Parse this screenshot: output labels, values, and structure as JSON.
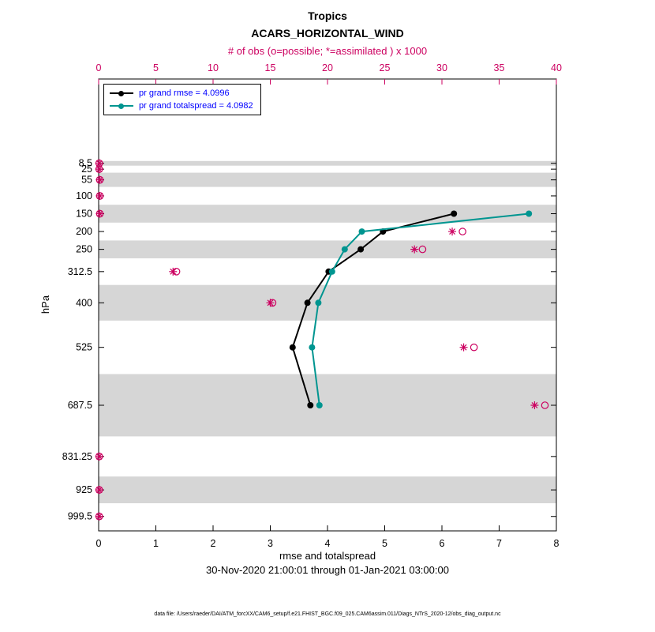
{
  "colors": {
    "rmse": "#000000",
    "totalspread": "#009590",
    "obs": "#cc0060",
    "legend_text": "#0000ff",
    "band": "#d6d6d6"
  },
  "chart_data": {
    "type": "line",
    "title": "Tropics",
    "subtitle": "ACARS_HORIZONTAL_WIND",
    "top_axis_label": "# of obs (o=possible; *=assimilated ) x 1000",
    "xlabel": "rmse and totalspread",
    "ylabel": "hPa",
    "date_range": "30-Nov-2020 21:00:01 through 01-Jan-2021 03:00:00",
    "data_file": "data file: /Users/raeder/DAI/ATM_forcXX/CAM6_setup/f.e21.FHIST_BGC.f09_025.CAM6assim.011/Diags_NTrS_2020-12/obs_diag_output.nc",
    "x_range": [
      0,
      8
    ],
    "x_ticks": [
      0,
      1,
      2,
      3,
      4,
      5,
      6,
      7,
      8
    ],
    "top_axis_range": [
      0,
      40
    ],
    "top_axis_ticks": [
      0,
      5,
      10,
      15,
      20,
      25,
      30,
      35,
      40
    ],
    "y_levels_hpa": [
      8.5,
      25,
      55,
      100,
      150,
      200,
      250,
      312.5,
      400,
      525,
      687.5,
      831.25,
      925,
      999.5
    ],
    "y_axis_range_hpa": [
      -228,
      1040
    ],
    "shaded_bands_hpa": [
      [
        2,
        15
      ],
      [
        35,
        75
      ],
      [
        125,
        175
      ],
      [
        225,
        275
      ],
      [
        350,
        450
      ],
      [
        600,
        775
      ],
      [
        887.5,
        962.5
      ]
    ],
    "series": [
      {
        "name": "pr grand rmse = 4.0996",
        "color_key": "rmse",
        "points": [
          {
            "level_hpa": 150,
            "value": 6.21
          },
          {
            "level_hpa": 200,
            "value": 4.97
          },
          {
            "level_hpa": 250,
            "value": 4.58
          },
          {
            "level_hpa": 312.5,
            "value": 4.02
          },
          {
            "level_hpa": 400,
            "value": 3.65
          },
          {
            "level_hpa": 525,
            "value": 3.39
          },
          {
            "level_hpa": 687.5,
            "value": 3.7
          }
        ]
      },
      {
        "name": "pr grand totalspread = 4.0982",
        "color_key": "totalspread",
        "points": [
          {
            "level_hpa": 150,
            "value": 7.52
          },
          {
            "level_hpa": 200,
            "value": 4.6
          },
          {
            "level_hpa": 250,
            "value": 4.3
          },
          {
            "level_hpa": 312.5,
            "value": 4.08
          },
          {
            "level_hpa": 400,
            "value": 3.84
          },
          {
            "level_hpa": 525,
            "value": 3.73
          },
          {
            "level_hpa": 687.5,
            "value": 3.86
          }
        ]
      }
    ],
    "obs_counts_thousands": [
      {
        "level_hpa": 8.5,
        "possible": 0.05,
        "assimilated": 0.05
      },
      {
        "level_hpa": 25,
        "possible": 0.05,
        "assimilated": 0.05
      },
      {
        "level_hpa": 55,
        "possible": 0.1,
        "assimilated": 0.1
      },
      {
        "level_hpa": 100,
        "possible": 0.1,
        "assimilated": 0.1
      },
      {
        "level_hpa": 150,
        "possible": 0.1,
        "assimilated": 0.1
      },
      {
        "level_hpa": 200,
        "possible": 31.8,
        "assimilated": 30.9
      },
      {
        "level_hpa": 250,
        "possible": 28.3,
        "assimilated": 27.6
      },
      {
        "level_hpa": 312.5,
        "possible": 6.8,
        "assimilated": 6.5
      },
      {
        "level_hpa": 400,
        "possible": 15.2,
        "assimilated": 15.0
      },
      {
        "level_hpa": 525,
        "possible": 32.8,
        "assimilated": 31.9
      },
      {
        "level_hpa": 687.5,
        "possible": 39.0,
        "assimilated": 38.1
      },
      {
        "level_hpa": 831.25,
        "possible": 0.05,
        "assimilated": 0.05
      },
      {
        "level_hpa": 925,
        "possible": 0.05,
        "assimilated": 0.05
      },
      {
        "level_hpa": 999.5,
        "possible": 0.05,
        "assimilated": 0.05
      }
    ]
  }
}
